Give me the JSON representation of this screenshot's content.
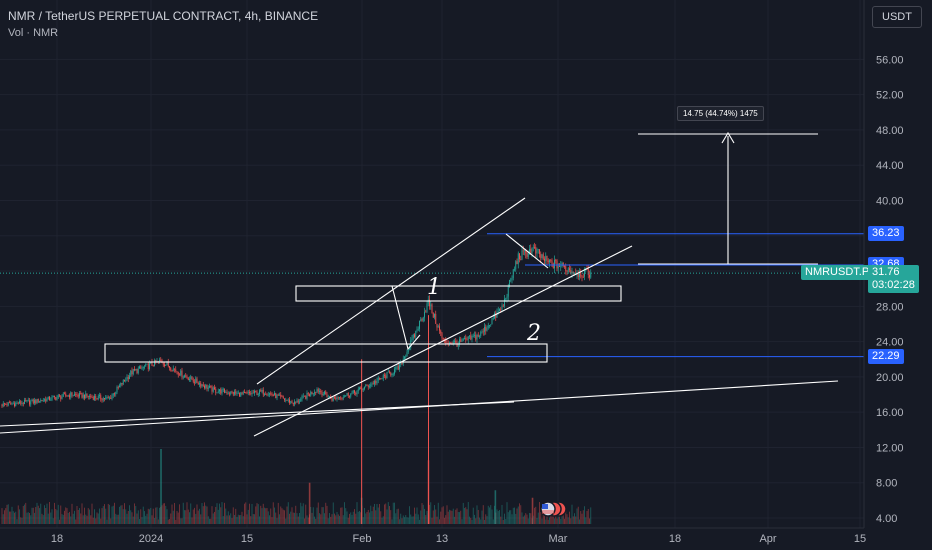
{
  "header": {
    "symbol_title": "NMR / TetherUS PERPETUAL CONTRACT, 4h, BINANCE",
    "volume_label": "Vol · NMR"
  },
  "currency_button": "USDT",
  "colors": {
    "background": "#161a25",
    "up": "#26a69a",
    "down": "#ef5350",
    "level_line": "#2962ff",
    "current_price": "#26a69a",
    "drawing": "#ffffff"
  },
  "chart_data": {
    "type": "candlestick",
    "y_axis": {
      "min": 4,
      "max": 60,
      "ticks": [
        "4.00",
        "8.00",
        "12.00",
        "16.00",
        "20.00",
        "24.00",
        "28.00",
        "32.00",
        "36.00",
        "40.00",
        "44.00",
        "48.00",
        "52.00",
        "56.00"
      ]
    },
    "x_axis": {
      "tick_labels": [
        "18",
        "2024",
        "15",
        "Feb",
        "13",
        "Mar",
        "18",
        "Apr",
        "15"
      ]
    },
    "price_tags": [
      {
        "label": "36.23",
        "value": 36.23,
        "style": "level"
      },
      {
        "label": "32.68",
        "value": 32.68,
        "style": "level"
      },
      {
        "label": "22.29",
        "value": 22.29,
        "style": "level"
      }
    ],
    "current_price": {
      "symbol": "NMRUSDT.P",
      "price": "31.76",
      "countdown": "03:02:28",
      "value": 31.76
    },
    "price_path": [
      {
        "date": "2023-12-05",
        "price": 16.5
      },
      {
        "date": "2023-12-10",
        "price": 16.8
      },
      {
        "date": "2023-12-15",
        "price": 17.2
      },
      {
        "date": "2023-12-20",
        "price": 18.0
      },
      {
        "date": "2023-12-25",
        "price": 17.5
      },
      {
        "date": "2023-12-28",
        "price": 20.5
      },
      {
        "date": "2024-01-01",
        "price": 21.8
      },
      {
        "date": "2024-01-04",
        "price": 20.2
      },
      {
        "date": "2024-01-08",
        "price": 18.5
      },
      {
        "date": "2024-01-12",
        "price": 18.0
      },
      {
        "date": "2024-01-15",
        "price": 18.3
      },
      {
        "date": "2024-01-19",
        "price": 17.0
      },
      {
        "date": "2024-01-22",
        "price": 18.6
      },
      {
        "date": "2024-01-24",
        "price": 17.5
      },
      {
        "date": "2024-01-27",
        "price": 18.2
      },
      {
        "date": "2024-01-30",
        "price": 19.5
      },
      {
        "date": "2024-02-02",
        "price": 21.0
      },
      {
        "date": "2024-02-04",
        "price": 24.5
      },
      {
        "date": "2024-02-06",
        "price": 28.5
      },
      {
        "date": "2024-02-08",
        "price": 24.0
      },
      {
        "date": "2024-02-10",
        "price": 23.8
      },
      {
        "date": "2024-02-13",
        "price": 24.8
      },
      {
        "date": "2024-02-16",
        "price": 28.0
      },
      {
        "date": "2024-02-18",
        "price": 33.5
      },
      {
        "date": "2024-02-20",
        "price": 34.5
      },
      {
        "date": "2024-02-22",
        "price": 33.0
      },
      {
        "date": "2024-02-24",
        "price": 32.5
      },
      {
        "date": "2024-02-26",
        "price": 31.8
      },
      {
        "date": "2024-02-28",
        "price": 31.76
      }
    ],
    "volume_spikes": [
      {
        "date": "2024-01-01",
        "rel": 1.0
      },
      {
        "date": "2024-01-21",
        "rel": 0.55
      },
      {
        "date": "2024-01-28",
        "rel": 0.35
      },
      {
        "date": "2024-02-06",
        "rel": 0.85
      },
      {
        "date": "2024-02-15",
        "rel": 0.45
      },
      {
        "date": "2024-02-20",
        "rel": 0.35
      }
    ],
    "drawings": {
      "measure_label": "14.75 (44.74%) 1475",
      "annotations": [
        "1",
        "2"
      ]
    }
  }
}
